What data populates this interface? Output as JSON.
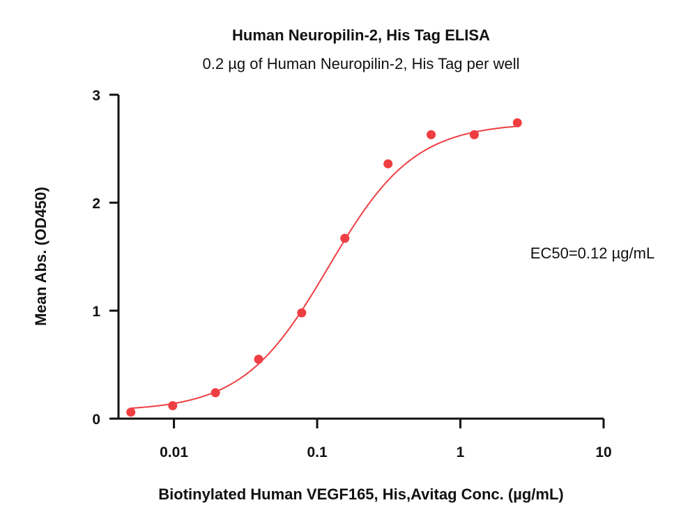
{
  "chart_data": {
    "type": "scatter",
    "title": "Human Neuropilin-2, His Tag ELISA",
    "subtitle": "0.2 µg of Human Neuropilin-2, His Tag per well",
    "xlabel": "Biotinylated Human VEGF165, His,Avitag Conc. (µg/mL)",
    "ylabel": "Mean Abs. (OD450)",
    "x_scale": "log",
    "xlim": [
      0.0041,
      10
    ],
    "ylim": [
      0,
      3
    ],
    "x_ticks": [
      {
        "value": 0.01,
        "label": "0.01"
      },
      {
        "value": 0.1,
        "label": "0.1"
      },
      {
        "value": 1,
        "label": "1"
      },
      {
        "value": 10,
        "label": "10"
      }
    ],
    "y_ticks": [
      {
        "value": 0,
        "label": "0"
      },
      {
        "value": 1,
        "label": "1"
      },
      {
        "value": 2,
        "label": "2"
      },
      {
        "value": 3,
        "label": "3"
      }
    ],
    "series": [
      {
        "x": [
          0.005,
          0.0098,
          0.0195,
          0.039,
          0.078,
          0.156,
          0.3125,
          0.625,
          1.25,
          2.5
        ],
        "y": [
          0.06,
          0.12,
          0.24,
          0.55,
          0.98,
          1.67,
          2.36,
          2.63,
          2.63,
          2.74
        ],
        "color": "#ef3e42"
      }
    ],
    "fit": {
      "type": "4PL",
      "bottom": 0.07,
      "top": 2.74,
      "ec50": 0.12,
      "hill": 1.45,
      "color": "#ef3e42"
    },
    "annotation": "EC50=0.12 µg/mL",
    "grid": false,
    "legend": "none"
  }
}
